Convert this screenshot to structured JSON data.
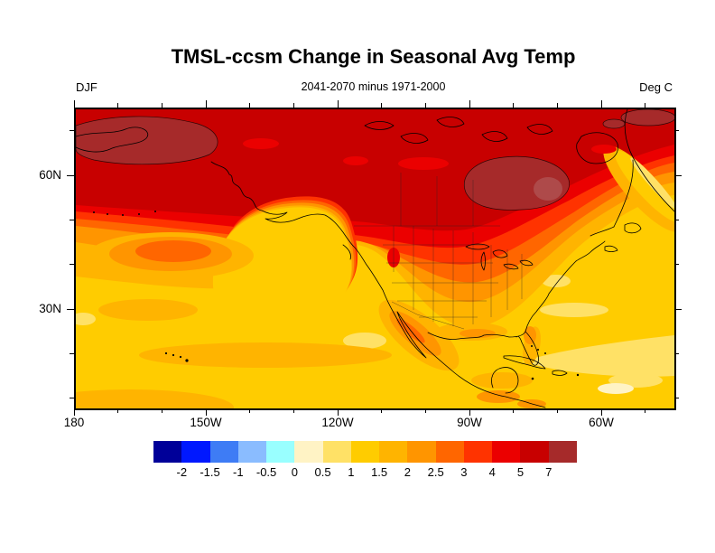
{
  "header": {
    "title": "TMSL-ccsm Change in Seasonal Avg Temp",
    "season": "DJF",
    "subtitle": "2041-2070 minus 1971-2000",
    "units": "Deg C"
  },
  "axes": {
    "lat_major": [
      {
        "label": "60N",
        "deg": 60
      },
      {
        "label": "30N",
        "deg": 30
      }
    ],
    "lon_major": [
      {
        "label": "180",
        "deg": 180
      },
      {
        "label": "150W",
        "deg": 150
      },
      {
        "label": "120W",
        "deg": 120
      },
      {
        "label": "90W",
        "deg": 90
      },
      {
        "label": "60W",
        "deg": 60
      }
    ],
    "minor_interval_deg": 10
  },
  "colorbar": {
    "boundary_labels": [
      "-2",
      "-1.5",
      "-1",
      "-0.5",
      "0",
      "0.5",
      "1",
      "1.5",
      "2",
      "2.5",
      "3",
      "4",
      "5",
      "7"
    ],
    "colors": [
      "#000099",
      "#0018FF",
      "#3E7CF5",
      "#8ABCFF",
      "#99FFFF",
      "#FFF3C5",
      "#FFE166",
      "#FFCC00",
      "#FFB400",
      "#FF9500",
      "#FF6600",
      "#FF3300",
      "#EB0000",
      "#C80000",
      "#A62A2A"
    ],
    "extra_colors": {
      "hudson_inner": "#AE4A4A"
    }
  },
  "chart_data": {
    "type": "heatmap",
    "subtype": "filled-contour-map",
    "title": "TMSL-ccsm Change in Seasonal Avg Temp",
    "subtitle": "2041-2070 minus 1971-2000",
    "season": "DJF",
    "units": "Deg C",
    "projection": "cylindrical-equidistant",
    "lon_range": [
      "180",
      "45W"
    ],
    "lat_range": [
      "8N",
      "75N"
    ],
    "xlabel_ticks": [
      "180",
      "150W",
      "120W",
      "90W",
      "60W"
    ],
    "ylabel_ticks": [
      "60N",
      "30N"
    ],
    "contour_levels": [
      -2,
      -1.5,
      -1,
      -0.5,
      0,
      0.5,
      1,
      1.5,
      2,
      2.5,
      3,
      4,
      5,
      7
    ],
    "level_colors": [
      "#000099",
      "#0018FF",
      "#3E7CF5",
      "#8ABCFF",
      "#99FFFF",
      "#FFF3C5",
      "#FFE166",
      "#FFCC00",
      "#FFB400",
      "#FF9500",
      "#FF6600",
      "#FF3300",
      "#EB0000",
      "#C80000",
      "#A62A2A"
    ],
    "legend_position": "bottom",
    "grid": false,
    "observations": [
      "Warming greater than 7 Deg C over the Arctic coast, Bering/Chukchi region and Hudson Bay",
      "5-7 Deg C warming across most of northern Canada and Alaska",
      "2-4 Deg C over the northern contiguous United States, decreasing southward to 1.5-2",
      "0.5-1.5 Deg C over the subtropical Pacific and Atlantic oceans",
      "No negative (cooling) areas appear on the map"
    ]
  }
}
